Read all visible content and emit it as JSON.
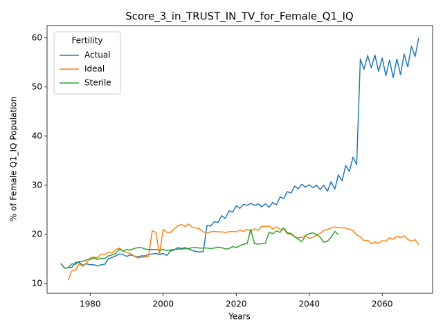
{
  "chart_data": {
    "type": "line",
    "title": "Score_3_in_TRUST_IN_TV_for_Female_Q1_IQ",
    "x_label": "Years",
    "y_label": "% of Female Q1_IQ Population",
    "legend_title": "Fertility",
    "legend_position": "upper left",
    "grid": false,
    "x": [
      1972,
      1973,
      1974,
      1975,
      1976,
      1977,
      1978,
      1979,
      1980,
      1981,
      1982,
      1983,
      1984,
      1985,
      1986,
      1987,
      1988,
      1989,
      1990,
      1991,
      1992,
      1993,
      1994,
      1995,
      1996,
      1997,
      1998,
      1999,
      2000,
      2001,
      2002,
      2003,
      2004,
      2005,
      2006,
      2007,
      2008,
      2009,
      2010,
      2011,
      2012,
      2013,
      2014,
      2015,
      2016,
      2017,
      2018,
      2019,
      2020,
      2021,
      2022,
      2023,
      2024,
      2025,
      2026,
      2027,
      2028,
      2029,
      2030,
      2031,
      2032,
      2033,
      2034,
      2035,
      2036,
      2037,
      2038,
      2039,
      2040,
      2041,
      2042,
      2043,
      2044,
      2045,
      2046,
      2047,
      2048,
      2049,
      2050,
      2051,
      2052,
      2053,
      2054,
      2055,
      2056,
      2057,
      2058,
      2059,
      2060,
      2061,
      2062,
      2063,
      2064,
      2065,
      2066,
      2067,
      2068,
      2069,
      2070
    ],
    "series": [
      {
        "name": "Actual",
        "color": "#1f77b4",
        "values": [
          14.0,
          13.1,
          13.2,
          13.3,
          14.3,
          14.3,
          13.7,
          14.0,
          13.8,
          13.8,
          13.6,
          13.8,
          13.9,
          15.0,
          15.3,
          15.6,
          16.0,
          15.9,
          15.5,
          15.8,
          15.6,
          15.4,
          15.6,
          15.6,
          15.9,
          16.0,
          16.1,
          15.9,
          16.1,
          15.7,
          16.6,
          16.8,
          17.3,
          17.1,
          17.3,
          17.0,
          16.7,
          16.5,
          16.4,
          16.5,
          21.8,
          21.7,
          22.6,
          22.4,
          23.8,
          23.2,
          24.8,
          24.5,
          25.8,
          25.3,
          26.1,
          25.9,
          26.3,
          25.9,
          26.2,
          25.6,
          26.2,
          25.5,
          26.5,
          26.0,
          27.6,
          27.3,
          28.7,
          28.4,
          29.8,
          29.3,
          30.2,
          29.6,
          30.1,
          29.5,
          30.0,
          29.1,
          30.0,
          28.8,
          30.7,
          29.2,
          32.1,
          30.9,
          34.0,
          32.8,
          35.7,
          34.2,
          55.7,
          53.6,
          56.4,
          53.9,
          56.5,
          53.2,
          55.9,
          52.3,
          55.5,
          51.9,
          55.7,
          52.5,
          56.7,
          54.1,
          58.3,
          56.2,
          60.0
        ]
      },
      {
        "name": "Ideal",
        "color": "#ff7f0e",
        "values": [
          null,
          null,
          10.7,
          12.6,
          12.7,
          14.0,
          13.5,
          14.2,
          15.2,
          15.4,
          15.2,
          16.0,
          15.9,
          16.3,
          16.2,
          16.9,
          17.2,
          16.6,
          16.3,
          16.1,
          15.6,
          15.2,
          15.3,
          15.4,
          15.5,
          20.7,
          20.4,
          16.0,
          21.0,
          20.4,
          20.4,
          21.1,
          21.7,
          22.0,
          21.6,
          22.1,
          21.4,
          21.3,
          21.1,
          20.5,
          20.3,
          20.5,
          20.6,
          20.5,
          20.5,
          20.4,
          20.5,
          20.6,
          20.5,
          20.9,
          20.6,
          21.0,
          20.7,
          21.1,
          20.8,
          21.6,
          21.6,
          21.7,
          21.1,
          21.5,
          21.0,
          21.1,
          20.1,
          20.0,
          19.5,
          19.3,
          19.4,
          19.6,
          19.2,
          19.4,
          19.8,
          20.2,
          20.8,
          21.0,
          21.3,
          21.5,
          21.4,
          21.3,
          21.3,
          21.0,
          20.8,
          19.9,
          19.5,
          18.7,
          18.8,
          18.1,
          18.4,
          18.2,
          18.7,
          18.6,
          19.3,
          19.0,
          19.6,
          19.3,
          19.7,
          19.0,
          18.6,
          18.9,
          17.9
        ]
      },
      {
        "name": "Sterile",
        "color": "#2ca02c",
        "values": [
          14.1,
          13.1,
          13.2,
          14.0,
          13.9,
          14.5,
          14.5,
          14.8,
          14.9,
          15.2,
          14.9,
          15.1,
          15.1,
          15.6,
          15.8,
          16.1,
          17.0,
          16.6,
          16.9,
          16.8,
          17.1,
          17.3,
          17.3,
          17.0,
          16.9,
          16.9,
          16.9,
          16.8,
          16.9,
          16.7,
          16.8,
          16.9,
          17.0,
          17.0,
          17.1,
          17.1,
          17.3,
          17.3,
          17.2,
          17.2,
          17.2,
          17.1,
          17.2,
          17.4,
          17.3,
          17.0,
          17.1,
          17.5,
          17.3,
          17.7,
          18.0,
          18.1,
          21.0,
          18.1,
          18.0,
          18.1,
          18.2,
          20.4,
          20.1,
          20.7,
          20.4,
          21.3,
          20.3,
          20.2,
          19.5,
          19.0,
          18.5,
          19.8,
          20.1,
          20.3,
          20.0,
          19.4,
          18.4,
          18.6,
          19.4,
          20.6,
          19.9,
          null,
          null,
          null,
          null,
          null,
          null,
          null,
          null,
          null,
          null,
          null,
          null,
          null,
          null,
          null,
          null,
          null,
          null,
          null,
          null,
          null,
          null
        ]
      }
    ],
    "xlim": [
      1968.2,
      2073.8
    ],
    "ylim": [
      8.0,
      62.5
    ],
    "xticks": [
      1980,
      2000,
      2020,
      2040,
      2060
    ],
    "yticks": [
      10,
      20,
      30,
      40,
      50,
      60
    ]
  }
}
